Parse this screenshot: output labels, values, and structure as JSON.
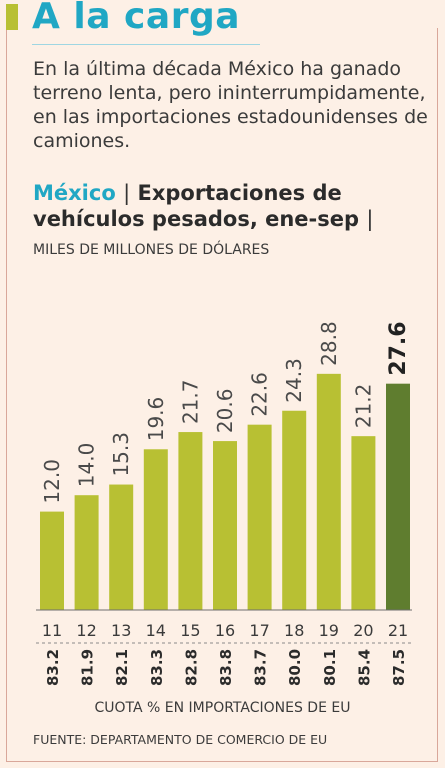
{
  "header": {
    "title": "A la carga",
    "intro": "En la última década México ha ganado terreno lenta, pero ininterrumpidamente, en las importaciones estadounidenses de camiones."
  },
  "chart_heading": {
    "country": "México",
    "separator1": "|",
    "title": "Exportaciones de vehículos pesados, ene-sep",
    "separator2": "|",
    "unit": "MILES DE MILLONES DE DÓLARES"
  },
  "chart_data": {
    "type": "bar",
    "categories": [
      "11",
      "12",
      "13",
      "14",
      "15",
      "16",
      "17",
      "18",
      "19",
      "20",
      "21"
    ],
    "values": [
      12.0,
      14.0,
      15.3,
      19.6,
      21.7,
      20.6,
      22.6,
      24.3,
      28.8,
      21.2,
      27.6
    ],
    "value_labels": [
      "12.0",
      "14.0",
      "15.3",
      "19.6",
      "21.7",
      "20.6",
      "22.6",
      "24.3",
      "28.8",
      "21.2",
      "27.6"
    ],
    "highlight_index": 10,
    "ylim": [
      0,
      30
    ],
    "secondary_row": {
      "label": "CUOTA % EN IMPORTACIONES DE EU",
      "values": [
        "83.2",
        "81.9",
        "82.1",
        "83.3",
        "82.8",
        "83.8",
        "83.7",
        "80.0",
        "80.1",
        "85.4",
        "87.5"
      ]
    },
    "colors": {
      "bar": "#b8c033",
      "highlight_bar": "#5f7d2f",
      "label": "#4a4a4a"
    }
  },
  "footer": {
    "source": "FUENTE: DEPARTAMENTO DE COMERCIO DE EU"
  }
}
